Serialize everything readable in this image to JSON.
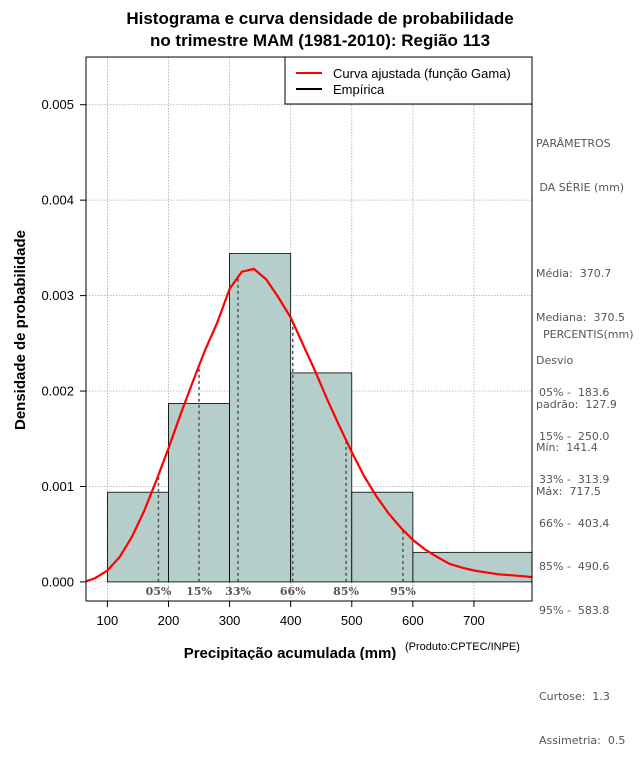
{
  "title_line1": "Histograma e curva densidade de probabilidade",
  "title_line2": "no trimestre MAM (1981-2010): Região 113",
  "credit": "(Produto:CPTEC/INPE)",
  "params": {
    "header1": "PARÂMETROS",
    "header2": " DA SÉRIE (mm)",
    "media": "Média:  370.7",
    "mediana": "Mediana:  370.5",
    "desvio1": "Desvio",
    "desvio2": "padrão:  127.9",
    "min": "Mín:  141.4",
    "max": "Máx:  717.5"
  },
  "percentis": {
    "header": "PERCENTIS(mm)",
    "p05": "05% -  183.6",
    "p15": "15% -  250.0",
    "p33": "33% -  313.9",
    "p66": "66% -  403.4",
    "p85": "85% -  490.6",
    "p95": "95% -  583.8",
    "curtose": "Curtose:  1.3",
    "assimetria": "Assimetria:  0.5"
  },
  "colors": {
    "bars": "#b5cecb",
    "curve": "#ff0000",
    "grid": "#aaaaaa",
    "pct": "#555555"
  },
  "chart_data": {
    "type": "bar",
    "title": "Histograma e curva densidade de probabilidade no trimestre MAM (1981-2010): Região 113",
    "xlabel": "Precipitação acumulada (mm)",
    "ylabel": "Densidade de probabilidade",
    "xlim": [
      65,
      795
    ],
    "ylim": [
      -0.0002,
      0.0055
    ],
    "x_ticks": [
      100,
      200,
      300,
      400,
      500,
      600,
      700
    ],
    "y_ticks": [
      0.0,
      0.001,
      0.002,
      0.003,
      0.004,
      0.005
    ],
    "y_tick_labels": [
      "0.000",
      "0.001",
      "0.002",
      "0.003",
      "0.004",
      "0.005"
    ],
    "grid": true,
    "bins": [
      {
        "start": 100,
        "end": 200,
        "density": 0.00094
      },
      {
        "start": 200,
        "end": 300,
        "density": 0.00187
      },
      {
        "start": 300,
        "end": 400,
        "density": 0.00344
      },
      {
        "start": 400,
        "end": 500,
        "density": 0.00219
      },
      {
        "start": 500,
        "end": 600,
        "density": 0.00094
      },
      {
        "start": 600,
        "end": 800,
        "density": 0.00031
      }
    ],
    "fitted_curve": {
      "name": "Curva ajustada (função Gama)",
      "x": [
        65,
        80,
        100,
        120,
        140,
        160,
        180,
        200,
        220,
        240,
        260,
        280,
        300,
        320,
        340,
        360,
        380,
        400,
        420,
        440,
        460,
        480,
        500,
        520,
        540,
        560,
        580,
        600,
        620,
        640,
        660,
        680,
        700,
        720,
        740,
        760,
        780,
        795
      ],
      "y": [
        5e-06,
        4e-05,
        0.00012,
        0.00026,
        0.00047,
        0.00074,
        0.00106,
        0.0014,
        0.00176,
        0.0021,
        0.00243,
        0.00272,
        0.00307,
        0.00325,
        0.00328,
        0.00317,
        0.00298,
        0.00277,
        0.00249,
        0.00221,
        0.00191,
        0.00163,
        0.00136,
        0.00111,
        0.0009,
        0.00072,
        0.00057,
        0.00044,
        0.00034,
        0.00026,
        0.00019,
        0.00015,
        0.00012,
        0.0001,
        8e-05,
        7e-05,
        6e-05,
        5e-05
      ]
    },
    "legend": [
      "Curva ajustada (função Gama)",
      "Empírica"
    ],
    "legend_position": "top-right",
    "percentiles": [
      {
        "label": "05%",
        "value": 183.6
      },
      {
        "label": "15%",
        "value": 250.0
      },
      {
        "label": "33%",
        "value": 313.9
      },
      {
        "label": "66%",
        "value": 403.4
      },
      {
        "label": "85%",
        "value": 490.6
      },
      {
        "label": "95%",
        "value": 583.8
      }
    ]
  }
}
